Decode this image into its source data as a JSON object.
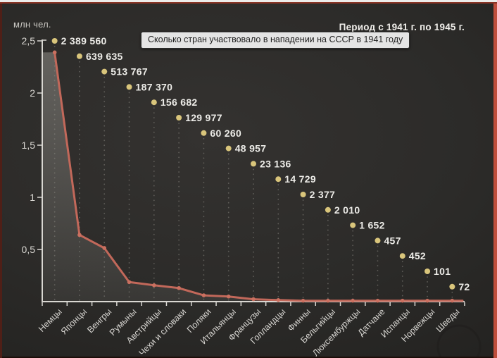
{
  "header": {
    "y_axis_title": "млн чел.",
    "period": "Период с 1941 г. по 1945 г."
  },
  "tooltip": {
    "text": "Сколько стран участвовало в нападении на СССР в 1941 году"
  },
  "chart_data": {
    "type": "line",
    "title": "Сколько стран участвовало в нападении на СССР в 1941 году",
    "period": "Период с 1941 г. по 1945 г.",
    "ylabel": "млн чел.",
    "ylim": [
      0,
      2.5
    ],
    "y_ticks": [
      {
        "label": "2,5",
        "value": 2.5
      },
      {
        "label": "2",
        "value": 2.0
      },
      {
        "label": "1,5",
        "value": 1.5
      },
      {
        "label": "1",
        "value": 1.0
      },
      {
        "label": "0,5",
        "value": 0.5
      }
    ],
    "categories": [
      "Немцы",
      "Японцы",
      "Венгры",
      "Румыны",
      "Австрийцы",
      "Чехи и словаки",
      "Поляки",
      "Итальянцы",
      "Французы",
      "Голландцы",
      "Финны",
      "Бельгийцы",
      "Люксембуржцы",
      "Датчане",
      "Испанцы",
      "Норвежцы",
      "Шведы"
    ],
    "values": [
      2389560,
      639635,
      513767,
      187370,
      156682,
      129977,
      60260,
      48957,
      23136,
      14729,
      2377,
      2010,
      1652,
      457,
      452,
      101,
      72
    ],
    "value_labels": [
      "2 389 560",
      "639 635",
      "513 767",
      "187 370",
      "156 682",
      "129 977",
      "60 260",
      "48 957",
      "23 136",
      "14 729",
      "2 377",
      "2 010",
      "1 652",
      "457",
      "452",
      "101",
      "72"
    ],
    "grid": "dotted vertical per category",
    "legend": "none",
    "colors": {
      "background": "#2d2c2a",
      "line": "#c2685a",
      "line_marker": "#ca7060",
      "point_dot": "#d9c57b",
      "value_text": "#edece8",
      "axis": "#d9d7d2",
      "axis_text": "#dad8d3",
      "grid_dots": "#8f8d86",
      "area_fill_top": "rgba(214,211,202,0.32)",
      "area_fill_bottom": "rgba(214,211,202,0.08)",
      "tooltip_bg": "#e4e4e4",
      "frame_right": "#bf4e3c",
      "frame_left": "#4f1f17",
      "frame_top": "#8a3526"
    }
  }
}
